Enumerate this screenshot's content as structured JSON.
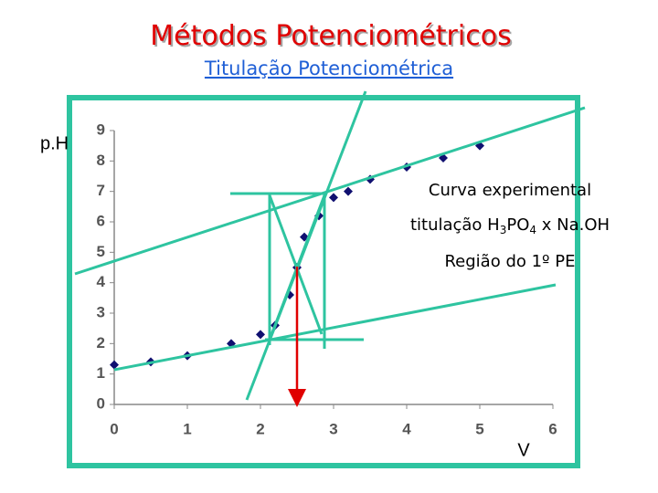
{
  "chart_data": {
    "type": "scatter",
    "title": "Métodos Potenciométricos",
    "subtitle": "Titulação Potenciométrica",
    "y_label": "p.H",
    "x_label": "V",
    "annotations": {
      "curve": "Curva experimental",
      "titration": [
        "titulação H",
        "3",
        "PO",
        "4",
        " x Na.OH"
      ],
      "region": "Região do 1º PE"
    },
    "color": "#101070",
    "x": [
      0,
      0.5,
      1.0,
      1.6,
      2.0,
      2.2,
      2.4,
      2.5,
      2.6,
      2.8,
      3.0,
      3.2,
      3.5,
      4.0,
      4.5,
      5.0
    ],
    "values": [
      1.3,
      1.4,
      1.6,
      2.0,
      2.3,
      2.6,
      3.6,
      4.5,
      5.5,
      6.2,
      6.8,
      7.0,
      7.4,
      7.8,
      8.1,
      8.5
    ],
    "xlim": [
      0,
      6
    ],
    "ylim": [
      0,
      9
    ],
    "xticks": [
      0,
      1,
      2,
      3,
      4,
      5,
      6
    ],
    "yticks": [
      0,
      1,
      2,
      3,
      4,
      5,
      6,
      7,
      8,
      9
    ]
  }
}
